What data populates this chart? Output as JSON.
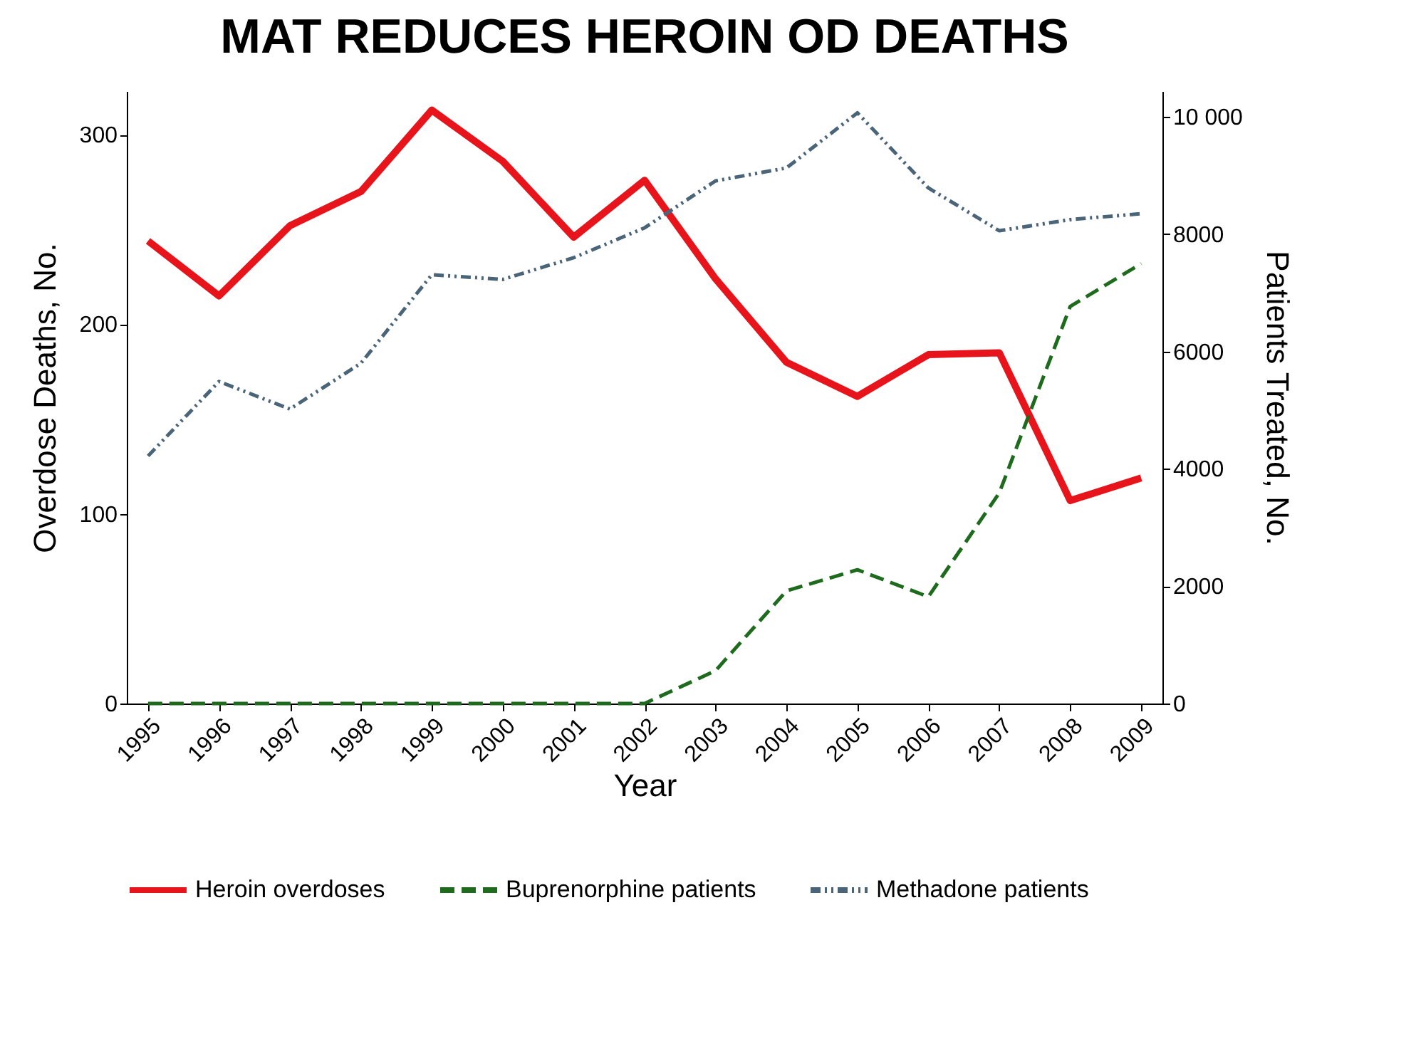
{
  "chart_data": {
    "type": "line",
    "title": "MAT REDUCES HEROIN OD DEATHS",
    "xlabel": "Year",
    "ylabel": "Overdose Deaths, No.",
    "y2label": "Patients Treated, No.",
    "categories": [
      "1995",
      "1996",
      "1997",
      "1998",
      "1999",
      "2000",
      "2001",
      "2002",
      "2003",
      "2004",
      "2005",
      "2006",
      "2007",
      "2008",
      "2009"
    ],
    "series": [
      {
        "name": "Heroin overdoses",
        "color": "#e8141b",
        "line_style": "solid",
        "values": [
          244,
          215,
          252,
          270,
          313,
          286,
          246,
          276,
          224,
          180,
          162,
          184,
          185,
          107,
          119
        ]
      },
      {
        "name": "Buprenorphine patients",
        "color": "#1e6b1e",
        "line_style": "dashed",
        "axis": "y2",
        "values": [
          0,
          0,
          0,
          0,
          0,
          0,
          0,
          0,
          560,
          1920,
          2280,
          1820,
          3590,
          6770,
          7500
        ]
      },
      {
        "name": "Methadone patients",
        "color": "#4a6478",
        "line_style": "dotted",
        "axis": "y2",
        "values": [
          4220,
          5490,
          5020,
          5800,
          7310,
          7230,
          7600,
          8110,
          8910,
          9130,
          10070,
          8790,
          8060,
          8250,
          8350
        ]
      }
    ],
    "ylim": [
      0,
      323
    ],
    "yticks": [
      0,
      100,
      200,
      300
    ],
    "y2lim": [
      0,
      10440
    ],
    "y2ticks": [
      0,
      2000,
      4000,
      6000,
      8000,
      {
        "value": 10000,
        "label": "10 000"
      }
    ],
    "grid": false,
    "legend": "bottom",
    "marker": "none"
  }
}
